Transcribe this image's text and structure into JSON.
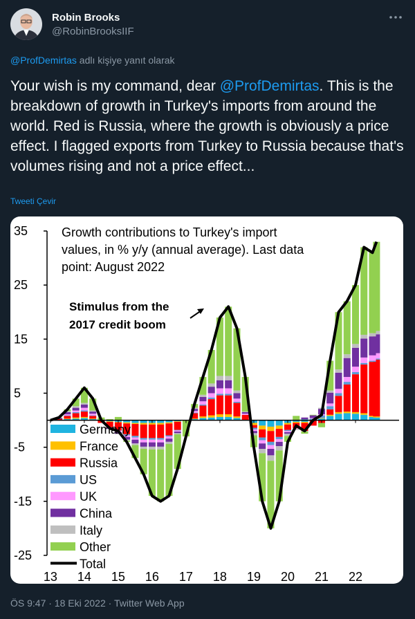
{
  "header": {
    "name": "Robin Brooks",
    "handle": "@RobinBrooksIIF"
  },
  "reply": {
    "mention": "@ProfDemirtas",
    "text": "adlı kişiye yanıt olarak"
  },
  "tweet": {
    "text_before": "Your wish is my command, dear ",
    "mention": "@ProfDemirtas",
    "text_after": ". This is the breakdown of growth in Turkey's imports from around the world. Red is Russia, where the growth is obviously a price effect. I flagged exports from Turkey to Russia because that's volumes rising and not a price effect..."
  },
  "translate": "Tweeti Çevir",
  "chart_data": {
    "type": "bar",
    "stacked": true,
    "title": [
      "Growth contributions to Turkey's import",
      "values, in % y/y (annual average). Last data",
      "point: August 2022"
    ],
    "annotation": [
      "Stimulus from the",
      "2017 credit boom"
    ],
    "x": [
      2013.0,
      2013.25,
      2013.5,
      2013.75,
      2014.0,
      2014.25,
      2014.5,
      2014.75,
      2015.0,
      2015.25,
      2015.5,
      2015.75,
      2016.0,
      2016.25,
      2016.5,
      2016.75,
      2017.0,
      2017.25,
      2017.5,
      2017.75,
      2018.0,
      2018.25,
      2018.5,
      2018.75,
      2019.0,
      2019.25,
      2019.5,
      2019.75,
      2020.0,
      2020.25,
      2020.5,
      2020.75,
      2021.0,
      2021.25,
      2021.5,
      2021.75,
      2022.0,
      2022.25,
      2022.5,
      2022.62
    ],
    "xlim": [
      2012.9,
      2023.0
    ],
    "xticks": [
      {
        "value": 2013,
        "label": "13"
      },
      {
        "value": 2014,
        "label": "14"
      },
      {
        "value": 2015,
        "label": "15"
      },
      {
        "value": 2016,
        "label": "16"
      },
      {
        "value": 2017,
        "label": "17"
      },
      {
        "value": 2018,
        "label": "18"
      },
      {
        "value": 2019,
        "label": "19"
      },
      {
        "value": 2020,
        "label": "20"
      },
      {
        "value": 2021,
        "label": "21"
      },
      {
        "value": 2022,
        "label": "22"
      }
    ],
    "ylim": [
      -25,
      35
    ],
    "yticks": [
      -25,
      -15,
      -5,
      5,
      15,
      25,
      35
    ],
    "series": [
      {
        "name": "Germany",
        "color": "#1fb4e0",
        "values": [
          0,
          0,
          0.2,
          0.3,
          0.4,
          0.2,
          0,
          -0.2,
          -0.3,
          -0.4,
          -0.5,
          -0.5,
          -0.5,
          -0.5,
          -0.4,
          -0.2,
          0,
          0.2,
          0.4,
          0.5,
          0.6,
          0.6,
          0.4,
          0,
          -0.5,
          -1,
          -1.2,
          -1,
          -0.5,
          -0.3,
          -0.3,
          0,
          0.3,
          0.8,
          1.2,
          1.3,
          1.2,
          1,
          0.6,
          0.5
        ]
      },
      {
        "name": "France",
        "color": "#ffc000",
        "values": [
          0,
          0,
          0.1,
          0.2,
          0.2,
          0.1,
          0,
          -0.1,
          -0.1,
          -0.2,
          -0.2,
          -0.3,
          -0.3,
          -0.3,
          -0.2,
          -0.1,
          0,
          0.1,
          0.3,
          0.4,
          0.5,
          0.5,
          0.3,
          0,
          -0.4,
          -0.7,
          -0.8,
          -0.6,
          -0.3,
          -0.2,
          -0.2,
          0,
          0.1,
          0.2,
          0.3,
          0.3,
          0.3,
          0.3,
          0.2,
          0.2
        ]
      },
      {
        "name": "Russia",
        "color": "#ff0000",
        "values": [
          0,
          0.2,
          0.5,
          0.8,
          1,
          0.5,
          -0.5,
          -1,
          -1.5,
          -2,
          -2.2,
          -2.5,
          -2.5,
          -2.5,
          -2.2,
          -1.5,
          0,
          1,
          2,
          3,
          3.5,
          3.5,
          2.5,
          1,
          -0.5,
          -1.5,
          -2,
          -1.5,
          -1,
          -1,
          -1.5,
          -1,
          -0.5,
          1,
          3,
          5,
          7,
          9,
          10,
          10.5
        ]
      },
      {
        "name": "US",
        "color": "#5b9bd5",
        "values": [
          0,
          0,
          0.1,
          0.2,
          0.2,
          0.1,
          0,
          0,
          -0.1,
          -0.2,
          -0.3,
          -0.3,
          -0.3,
          -0.3,
          -0.2,
          -0.1,
          0,
          0.1,
          0.2,
          0.3,
          0.3,
          0.3,
          0.2,
          0,
          -0.3,
          -0.5,
          -0.6,
          -0.4,
          -0.2,
          0,
          0.2,
          0.3,
          0.5,
          0.6,
          0.5,
          0.5,
          0.4,
          0.3,
          0.2,
          0.2
        ]
      },
      {
        "name": "UK",
        "color": "#ff99ff",
        "values": [
          0,
          0,
          0.2,
          0.3,
          0.5,
          0.3,
          0,
          -0.1,
          -0.2,
          -0.3,
          -0.4,
          -0.5,
          -0.5,
          -0.5,
          -0.4,
          -0.2,
          0,
          0.3,
          0.6,
          0.8,
          1,
          1,
          0.6,
          0.2,
          -0.3,
          -0.6,
          -0.7,
          -0.5,
          -0.2,
          -0.1,
          0,
          0.1,
          0.2,
          0.5,
          0.8,
          0.9,
          1,
          1,
          1,
          1
        ]
      },
      {
        "name": "China",
        "color": "#7030a0",
        "values": [
          0,
          0.2,
          0.4,
          0.5,
          0.6,
          0.4,
          0,
          -0.2,
          -0.3,
          -0.5,
          -0.7,
          -0.8,
          -0.8,
          -0.8,
          -0.6,
          -0.3,
          0,
          0.4,
          0.8,
          1.2,
          1.5,
          1.5,
          1,
          0.3,
          -0.4,
          -1,
          -1.2,
          -0.8,
          -0.3,
          0,
          0.3,
          0.5,
          1,
          2,
          3,
          3.5,
          3.5,
          3.5,
          3.5,
          3.5
        ]
      },
      {
        "name": "Italy",
        "color": "#bfbfbf",
        "values": [
          0,
          0,
          0.2,
          0.3,
          0.3,
          0.2,
          0,
          -0.1,
          -0.1,
          -0.2,
          -0.3,
          -0.4,
          -0.5,
          -0.5,
          -0.4,
          -0.2,
          0,
          0.2,
          0.4,
          0.6,
          0.8,
          0.8,
          0.5,
          0.1,
          -0.4,
          -0.8,
          -1,
          -0.8,
          -0.4,
          -0.2,
          -0.1,
          0,
          0.2,
          0.4,
          0.6,
          0.7,
          0.7,
          0.7,
          0.6,
          0.6
        ]
      },
      {
        "name": "Other",
        "color": "#92d050",
        "values": [
          0,
          0.1,
          0.3,
          1.4,
          2.8,
          2.2,
          0.5,
          0.2,
          0.6,
          -0.2,
          -2.4,
          -4.7,
          -8.6,
          -9.6,
          -9.6,
          -6.4,
          -3,
          0.7,
          3.3,
          6.2,
          10.8,
          12.8,
          11.5,
          6.4,
          -2.2,
          -8.9,
          -12.5,
          -9.4,
          -1.1,
          0.8,
          -0.4,
          0.1,
          -0.8,
          5.5,
          10.6,
          9.8,
          10.9,
          16.2,
          14.9,
          16.5
        ]
      },
      {
        "name": "Total",
        "color": "#000000",
        "style": "line",
        "values": [
          0,
          0.5,
          2,
          4,
          6,
          4,
          0,
          -1.5,
          -2,
          -4,
          -7,
          -10,
          -14,
          -15,
          -14,
          -9,
          -3,
          3,
          8,
          13,
          19,
          21,
          17,
          8,
          -5,
          -15,
          -20,
          -15,
          -4,
          -1,
          -2,
          0,
          1,
          11,
          20,
          22,
          25,
          32,
          31,
          33
        ]
      }
    ]
  },
  "footer": "ÖS 9:47 · 18 Eki 2022 · Twitter Web App"
}
